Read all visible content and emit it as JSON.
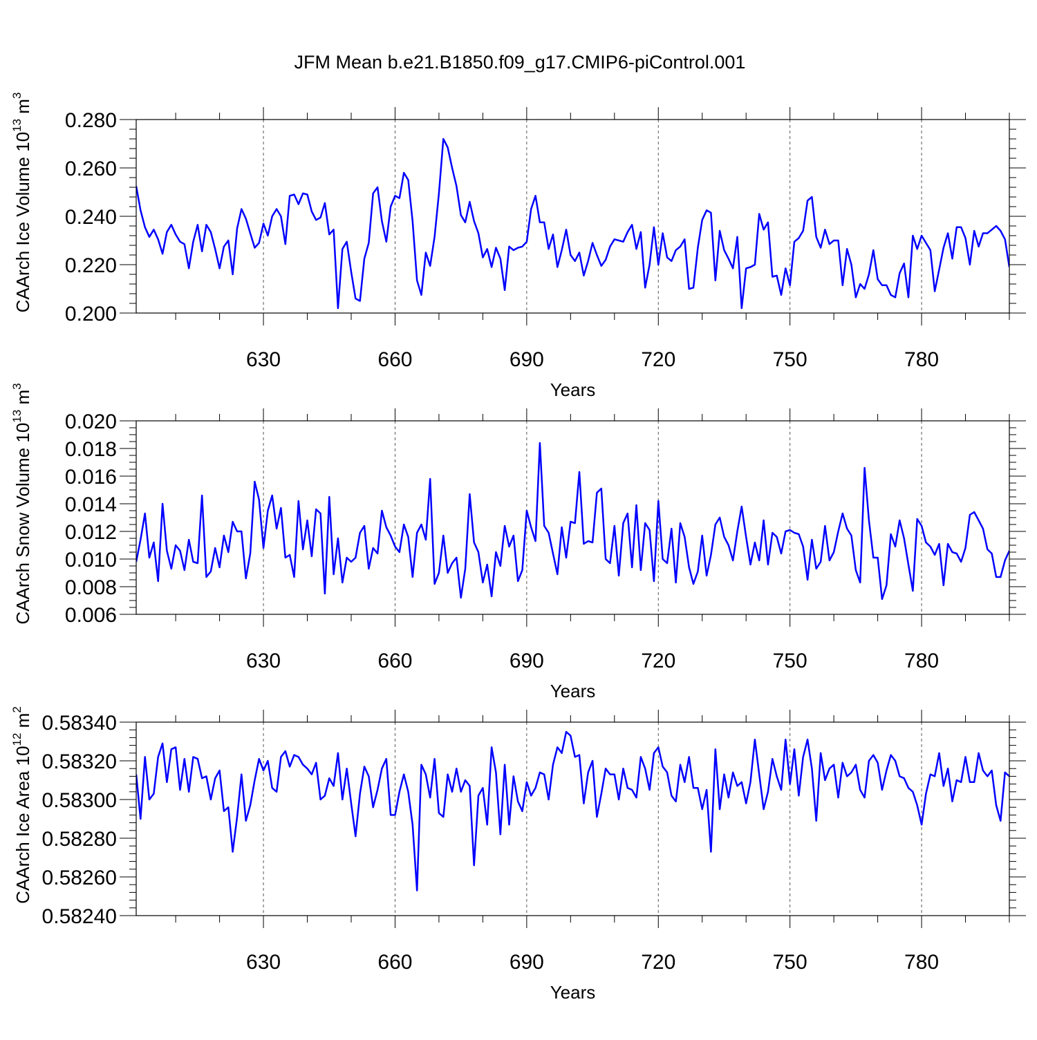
{
  "title": "JFM Mean b.e21.B1850.f09_g17.CMIP6-piControl.001",
  "colors": {
    "line": "#0000ff",
    "axis": "#000000",
    "grid": "#555555"
  },
  "chart_data": [
    {
      "type": "line",
      "ylabel": "CAArch Ice Volume 10",
      "ylabel_exp": "13",
      "ylabel_unit": " m",
      "ylabel_unit_exp": "3",
      "xlabel": "Years",
      "xlim": [
        601,
        800
      ],
      "ylim": [
        0.2,
        0.28
      ],
      "x_ticks": [
        "630",
        "660",
        "690",
        "720",
        "750",
        "780"
      ],
      "x_tick_values": [
        630,
        660,
        690,
        720,
        750,
        780
      ],
      "y_ticks": [
        "0.200",
        "0.220",
        "0.240",
        "0.260",
        "0.280"
      ],
      "y_tick_values": [
        0.2,
        0.22,
        0.24,
        0.26,
        0.28
      ],
      "y_minor_step": 0.004,
      "grid": "vertical dashed at labeled x ticks",
      "series": [
        {
          "x_start": 601,
          "values": [
            0.2525,
            0.2425,
            0.2355,
            0.2315,
            0.2345,
            0.2305,
            0.2245,
            0.2335,
            0.2365,
            0.2325,
            0.2295,
            0.2285,
            0.2185,
            0.2295,
            0.2365,
            0.2255,
            0.2365,
            0.2335,
            0.2265,
            0.2185,
            0.2275,
            0.23,
            0.216,
            0.235,
            0.243,
            0.239,
            0.233,
            0.227,
            0.229,
            0.237,
            0.232,
            0.24,
            0.243,
            0.24,
            0.2285,
            0.2485,
            0.249,
            0.245,
            0.2495,
            0.249,
            0.242,
            0.2385,
            0.2395,
            0.2455,
            0.2325,
            0.2345,
            0.202,
            0.2265,
            0.2295,
            0.217,
            0.206,
            0.205,
            0.2225,
            0.229,
            0.2495,
            0.252,
            0.238,
            0.2295,
            0.244,
            0.2485,
            0.2475,
            0.258,
            0.255,
            0.238,
            0.2135,
            0.2075,
            0.225,
            0.2195,
            0.2315,
            0.2495,
            0.272,
            0.2685,
            0.26,
            0.2525,
            0.2405,
            0.2375,
            0.246,
            0.238,
            0.233,
            0.223,
            0.2265,
            0.219,
            0.227,
            0.2225,
            0.2095,
            0.2275,
            0.226,
            0.227,
            0.2275,
            0.2295,
            0.243,
            0.2485,
            0.2375,
            0.2375,
            0.2265,
            0.2325,
            0.219,
            0.226,
            0.2345,
            0.224,
            0.2215,
            0.225,
            0.2155,
            0.2215,
            0.229,
            0.224,
            0.2195,
            0.222,
            0.2275,
            0.2305,
            0.23,
            0.2295,
            0.2335,
            0.2365,
            0.2265,
            0.2335,
            0.2105,
            0.22,
            0.2355,
            0.22,
            0.233,
            0.223,
            0.2215,
            0.226,
            0.2275,
            0.2305,
            0.21,
            0.2105,
            0.227,
            0.2385,
            0.2425,
            0.2415,
            0.2135,
            0.234,
            0.226,
            0.2225,
            0.2185,
            0.2315,
            0.202,
            0.2185,
            0.219,
            0.22,
            0.241,
            0.2345,
            0.2375,
            0.215,
            0.2155,
            0.2075,
            0.2185,
            0.2115,
            0.2295,
            0.231,
            0.234,
            0.2465,
            0.248,
            0.2315,
            0.227,
            0.2345,
            0.2285,
            0.23,
            0.23,
            0.2115,
            0.2265,
            0.22,
            0.2065,
            0.212,
            0.21,
            0.216,
            0.226,
            0.214,
            0.2115,
            0.2115,
            0.2075,
            0.2065,
            0.2165,
            0.2205,
            0.2065,
            0.232,
            0.2265,
            0.232,
            0.229,
            0.226,
            0.209,
            0.218,
            0.227,
            0.233,
            0.2225,
            0.2355,
            0.2355,
            0.231,
            0.22,
            0.234,
            0.2275,
            0.233,
            0.233,
            0.2345,
            0.236,
            0.234,
            0.2305,
            0.219
          ]
        }
      ]
    },
    {
      "type": "line",
      "ylabel": "CAArch Snow Volume 10",
      "ylabel_exp": "13",
      "ylabel_unit": " m",
      "ylabel_unit_exp": "3",
      "xlabel": "Years",
      "xlim": [
        601,
        800
      ],
      "ylim": [
        0.006,
        0.02
      ],
      "x_ticks": [
        "630",
        "660",
        "690",
        "720",
        "750",
        "780"
      ],
      "x_tick_values": [
        630,
        660,
        690,
        720,
        750,
        780
      ],
      "y_ticks": [
        "0.006",
        "0.008",
        "0.010",
        "0.012",
        "0.014",
        "0.016",
        "0.018",
        "0.020"
      ],
      "y_tick_values": [
        0.006,
        0.008,
        0.01,
        0.012,
        0.014,
        0.016,
        0.018,
        0.02
      ],
      "y_minor_step": 0.0005,
      "grid": "vertical dashed at labeled x ticks",
      "series": [
        {
          "x_start": 601,
          "values": [
            0.0098,
            0.0114,
            0.0133,
            0.0101,
            0.0112,
            0.0084,
            0.014,
            0.0106,
            0.0093,
            0.011,
            0.0106,
            0.0092,
            0.0114,
            0.0098,
            0.0097,
            0.0146,
            0.0087,
            0.0091,
            0.0108,
            0.0094,
            0.0117,
            0.0105,
            0.0127,
            0.012,
            0.012,
            0.0086,
            0.0104,
            0.0156,
            0.0143,
            0.0108,
            0.0135,
            0.0146,
            0.0122,
            0.0137,
            0.0101,
            0.0103,
            0.0087,
            0.0142,
            0.0107,
            0.0128,
            0.0102,
            0.0136,
            0.0133,
            0.0075,
            0.0145,
            0.0089,
            0.0115,
            0.0083,
            0.0101,
            0.0098,
            0.0101,
            0.0119,
            0.0124,
            0.0093,
            0.0108,
            0.0104,
            0.0135,
            0.0123,
            0.0117,
            0.0109,
            0.0105,
            0.0125,
            0.0116,
            0.0087,
            0.0119,
            0.0125,
            0.0114,
            0.0158,
            0.0082,
            0.009,
            0.0117,
            0.009,
            0.0097,
            0.0101,
            0.0072,
            0.0093,
            0.0147,
            0.0112,
            0.0105,
            0.0083,
            0.0096,
            0.0073,
            0.0105,
            0.0095,
            0.0124,
            0.0109,
            0.0117,
            0.0084,
            0.0092,
            0.0135,
            0.0123,
            0.0113,
            0.0184,
            0.0124,
            0.0119,
            0.0104,
            0.0089,
            0.0123,
            0.0101,
            0.0127,
            0.0126,
            0.0163,
            0.0111,
            0.0113,
            0.0112,
            0.0148,
            0.0151,
            0.01,
            0.0097,
            0.0124,
            0.0088,
            0.0126,
            0.0133,
            0.0094,
            0.0139,
            0.0092,
            0.0126,
            0.0121,
            0.0084,
            0.0142,
            0.01,
            0.0097,
            0.0122,
            0.0083,
            0.0126,
            0.0116,
            0.0094,
            0.0082,
            0.0091,
            0.0117,
            0.0088,
            0.0103,
            0.0125,
            0.013,
            0.0116,
            0.011,
            0.0099,
            0.012,
            0.0138,
            0.0116,
            0.0096,
            0.0112,
            0.0099,
            0.0128,
            0.0096,
            0.0119,
            0.0116,
            0.0104,
            0.012,
            0.0121,
            0.0119,
            0.0118,
            0.0109,
            0.0085,
            0.0114,
            0.0093,
            0.0098,
            0.0124,
            0.0099,
            0.0105,
            0.012,
            0.0133,
            0.0122,
            0.0117,
            0.0092,
            0.0083,
            0.0166,
            0.0128,
            0.0101,
            0.0101,
            0.0071,
            0.0081,
            0.0118,
            0.0109,
            0.0128,
            0.0115,
            0.0096,
            0.0077,
            0.0129,
            0.0124,
            0.0112,
            0.0109,
            0.0103,
            0.0111,
            0.0081,
            0.0111,
            0.0105,
            0.0104,
            0.0098,
            0.0108,
            0.0132,
            0.0134,
            0.0128,
            0.0122,
            0.0107,
            0.0104,
            0.0087,
            0.0087,
            0.0099,
            0.0106
          ]
        }
      ]
    },
    {
      "type": "line",
      "ylabel": "CAArch Ice Area 10",
      "ylabel_exp": "12",
      "ylabel_unit": " m",
      "ylabel_unit_exp": "2",
      "xlabel": "Years",
      "xlim": [
        601,
        800
      ],
      "ylim": [
        0.5824,
        0.5834
      ],
      "x_ticks": [
        "630",
        "660",
        "690",
        "720",
        "750",
        "780"
      ],
      "x_tick_values": [
        630,
        660,
        690,
        720,
        750,
        780
      ],
      "y_ticks": [
        "0.58240",
        "0.58260",
        "0.58280",
        "0.58300",
        "0.58320",
        "0.58340"
      ],
      "y_tick_values": [
        0.5824,
        0.5826,
        0.5828,
        0.583,
        0.5832,
        0.5834
      ],
      "y_minor_step": 4e-05,
      "grid": "vertical dashed at labeled x ticks",
      "series": [
        {
          "x_start": 601,
          "values": [
            0.58313,
            0.5829,
            0.58322,
            0.583,
            0.58303,
            0.58322,
            0.58329,
            0.58309,
            0.58326,
            0.58327,
            0.58305,
            0.58321,
            0.58304,
            0.58322,
            0.58321,
            0.58311,
            0.58312,
            0.583,
            0.58311,
            0.58315,
            0.58294,
            0.58296,
            0.58273,
            0.58291,
            0.58313,
            0.58289,
            0.58297,
            0.5831,
            0.58321,
            0.58315,
            0.5832,
            0.58306,
            0.58304,
            0.58322,
            0.58325,
            0.58317,
            0.58323,
            0.58322,
            0.58318,
            0.58316,
            0.58313,
            0.58319,
            0.583,
            0.58302,
            0.58311,
            0.58307,
            0.58324,
            0.583,
            0.58316,
            0.58298,
            0.58281,
            0.58303,
            0.58317,
            0.58312,
            0.58296,
            0.58305,
            0.58316,
            0.58321,
            0.58292,
            0.58292,
            0.58304,
            0.58313,
            0.58304,
            0.58287,
            0.58253,
            0.58318,
            0.58313,
            0.58301,
            0.58321,
            0.58293,
            0.58291,
            0.58313,
            0.58304,
            0.58316,
            0.58304,
            0.5831,
            0.58307,
            0.58266,
            0.58302,
            0.58306,
            0.58287,
            0.58327,
            0.58314,
            0.58282,
            0.58318,
            0.58287,
            0.58312,
            0.58299,
            0.58294,
            0.58309,
            0.58302,
            0.58306,
            0.58314,
            0.58313,
            0.583,
            0.58318,
            0.58327,
            0.58324,
            0.58335,
            0.58333,
            0.58322,
            0.58323,
            0.58298,
            0.58314,
            0.5832,
            0.58291,
            0.58303,
            0.58316,
            0.58313,
            0.58313,
            0.583,
            0.58316,
            0.58306,
            0.58305,
            0.58301,
            0.58322,
            0.58316,
            0.58305,
            0.58324,
            0.58327,
            0.58317,
            0.58314,
            0.58302,
            0.58299,
            0.58318,
            0.58309,
            0.58322,
            0.58306,
            0.58306,
            0.58295,
            0.58305,
            0.58273,
            0.58326,
            0.58295,
            0.58313,
            0.58301,
            0.58314,
            0.58307,
            0.58309,
            0.58298,
            0.58309,
            0.58331,
            0.58313,
            0.58295,
            0.58304,
            0.58321,
            0.58312,
            0.58305,
            0.58331,
            0.58308,
            0.58326,
            0.58302,
            0.58322,
            0.58331,
            0.58316,
            0.58289,
            0.58324,
            0.5831,
            0.58316,
            0.58318,
            0.58301,
            0.58319,
            0.58312,
            0.58314,
            0.58318,
            0.58305,
            0.58301,
            0.5832,
            0.58323,
            0.58319,
            0.58305,
            0.58315,
            0.58323,
            0.5832,
            0.58312,
            0.58311,
            0.58306,
            0.58304,
            0.58297,
            0.58287,
            0.58303,
            0.58313,
            0.58312,
            0.58324,
            0.58307,
            0.58316,
            0.58299,
            0.5831,
            0.58309,
            0.58322,
            0.58309,
            0.58309,
            0.58324,
            0.58315,
            0.58312,
            0.58315,
            0.58297,
            0.58289,
            0.58314,
            0.58312
          ]
        }
      ]
    }
  ]
}
